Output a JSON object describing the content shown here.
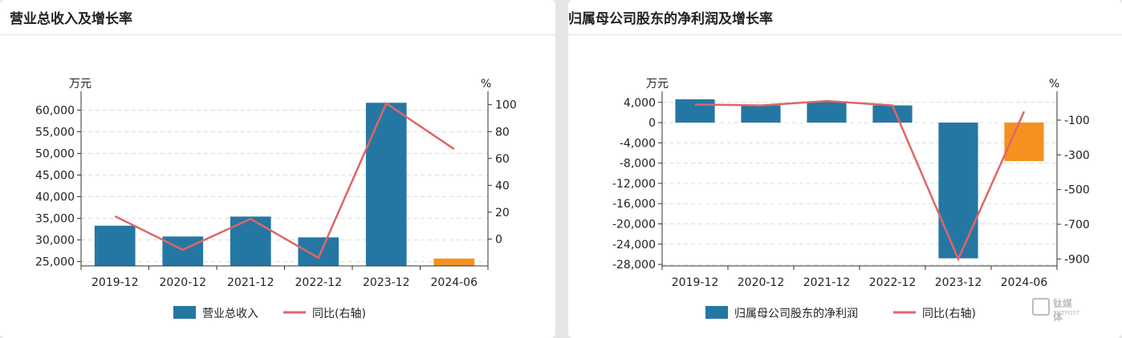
{
  "left_panel": {
    "title": "营业总收入及增长率"
  },
  "right_panel": {
    "title": "归属母公司股东的净利润及增长率"
  },
  "watermark": {
    "main": "钛媒体",
    "sub": "TMTPOST"
  },
  "chart_data": [
    {
      "type": "bar",
      "title": "营业总收入及增长率",
      "categories": [
        "2019-12",
        "2020-12",
        "2021-12",
        "2022-12",
        "2023-12",
        "2024-06"
      ],
      "left_unit": "万元",
      "right_unit": "%",
      "ylim_left": [
        24000,
        62500
      ],
      "yticks_left": [
        25000,
        30000,
        35000,
        40000,
        45000,
        50000,
        55000,
        60000
      ],
      "ytick_labels_left": [
        "25,000",
        "30,000",
        "35,000",
        "40,000",
        "45,000",
        "50,000",
        "55,000",
        "60,000"
      ],
      "ylim_right": [
        -20,
        104
      ],
      "yticks_right": [
        0,
        20,
        40,
        60,
        80,
        100
      ],
      "ytick_labels_right": [
        "0",
        "20",
        "40",
        "60",
        "80",
        "100"
      ],
      "grid": true,
      "legend_position": "bottom",
      "series": [
        {
          "name": "营业总收入",
          "type": "bar",
          "axis": "left",
          "values": [
            33300,
            30800,
            35400,
            30600,
            61700,
            25700
          ],
          "colors": [
            "#2577a3",
            "#2577a3",
            "#2577a3",
            "#2577a3",
            "#2577a3",
            "#f5911e"
          ]
        },
        {
          "name": "同比(右轴)",
          "type": "line",
          "axis": "right",
          "values": [
            17,
            -8,
            15,
            -14,
            101,
            67
          ],
          "color": "#de6666"
        }
      ]
    },
    {
      "type": "bar",
      "title": "归属母公司股东的净利润及增长率",
      "categories": [
        "2019-12",
        "2020-12",
        "2021-12",
        "2022-12",
        "2023-12",
        "2024-06"
      ],
      "left_unit": "万元",
      "right_unit": "%",
      "ylim_left": [
        -28300,
        4600
      ],
      "yticks_left": [
        4000,
        0,
        -4000,
        -8000,
        -12000,
        -16000,
        -20000,
        -24000,
        -28000
      ],
      "ytick_labels_left": [
        "4,000",
        "0",
        "-4,000",
        "-8,000",
        "-12,000",
        "-16,000",
        "-20,000",
        "-24,000",
        "-28,000"
      ],
      "ylim_right": [
        -940,
        20
      ],
      "yticks_right": [
        -100,
        -300,
        -500,
        -700,
        -900
      ],
      "ytick_labels_right": [
        "-100",
        "-300",
        "-500",
        "-700",
        "-900"
      ],
      "grid": true,
      "legend_position": "bottom",
      "series": [
        {
          "name": "归属母公司股东的净利润",
          "type": "bar",
          "axis": "left",
          "values": [
            4600,
            3400,
            4100,
            3400,
            -26800,
            -7600
          ],
          "colors": [
            "#2577a3",
            "#2577a3",
            "#2577a3",
            "#2577a3",
            "#2577a3",
            "#f5911e"
          ]
        },
        {
          "name": "同比(右轴)",
          "type": "line",
          "axis": "right",
          "values": [
            -10,
            -15,
            10,
            -15,
            -900,
            -50
          ],
          "color": "#de6666"
        }
      ]
    }
  ]
}
